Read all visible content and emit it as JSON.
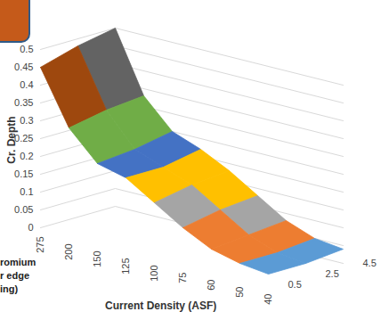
{
  "chart_data": {
    "type": "surface",
    "x_label": "Current Density (ASF)",
    "y_label": "Cr. Depth",
    "categories": [
      "275",
      "200",
      "150",
      "125",
      "100",
      "75",
      "60",
      "50",
      "40"
    ],
    "series": [
      {
        "name": "0.5",
        "values": [
          0.45,
          0.3,
          0.22,
          0.2,
          0.15,
          0.1,
          0.06,
          0.04,
          0.03
        ]
      },
      {
        "name": "2.5",
        "values": [
          0.48,
          0.32,
          0.23,
          0.2,
          0.17,
          0.12,
          0.07,
          0.04,
          0.03
        ]
      },
      {
        "name": "4.5",
        "values": [
          0.5,
          0.33,
          0.25,
          0.22,
          0.18,
          0.13,
          0.08,
          0.05,
          0.04
        ]
      }
    ],
    "ylim": [
      0,
      0.5
    ],
    "yticks": [
      0,
      0.05,
      0.1,
      0.15,
      0.2,
      0.25,
      0.3,
      0.35,
      0.4,
      0.45,
      0.5
    ],
    "colors": [
      "#5b9bd5",
      "#ed7d31",
      "#a5a5a5",
      "#ffc000",
      "#4472c4",
      "#70ad47",
      "#255e91",
      "#9e480e",
      "#636363",
      "#997300"
    ],
    "grid": true,
    "annotations": [
      "romium",
      "r edge",
      "ing)"
    ]
  }
}
